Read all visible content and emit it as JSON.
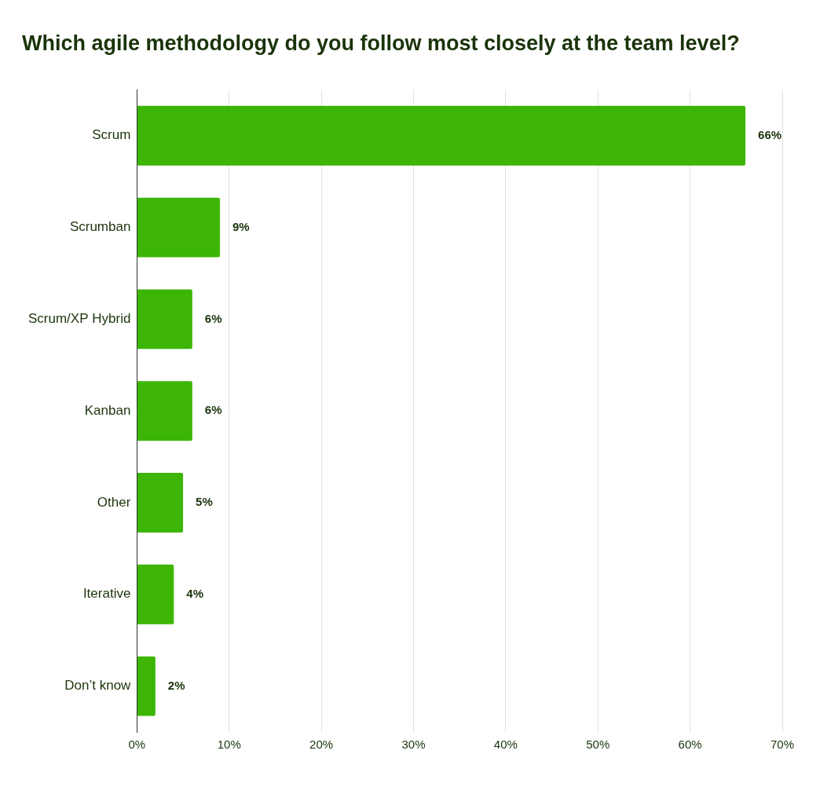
{
  "chart_data": {
    "type": "bar",
    "orientation": "horizontal",
    "title": "Which agile methodology do you follow most closely at the team level?",
    "categories": [
      "Scrum",
      "Scrumban",
      "Scrum/XP Hybrid",
      "Kanban",
      "Other",
      "Iterative",
      "Don’t know"
    ],
    "values": [
      66,
      9,
      6,
      6,
      5,
      4,
      2
    ],
    "value_labels": [
      "66%",
      "9%",
      "6%",
      "6%",
      "5%",
      "4%",
      "2%"
    ],
    "color": "#3cb505",
    "xlim": [
      0,
      70
    ],
    "xticks": [
      {
        "value": 0,
        "label": "0%"
      },
      {
        "value": 10,
        "label": "10%"
      },
      {
        "value": 20,
        "label": "20%"
      },
      {
        "value": 30,
        "label": "30%"
      },
      {
        "value": 40,
        "label": "40%"
      },
      {
        "value": 50,
        "label": "50%"
      },
      {
        "value": 60,
        "label": "60%"
      },
      {
        "value": 70,
        "label": "70%"
      }
    ],
    "grid": true,
    "data_labels": true
  }
}
